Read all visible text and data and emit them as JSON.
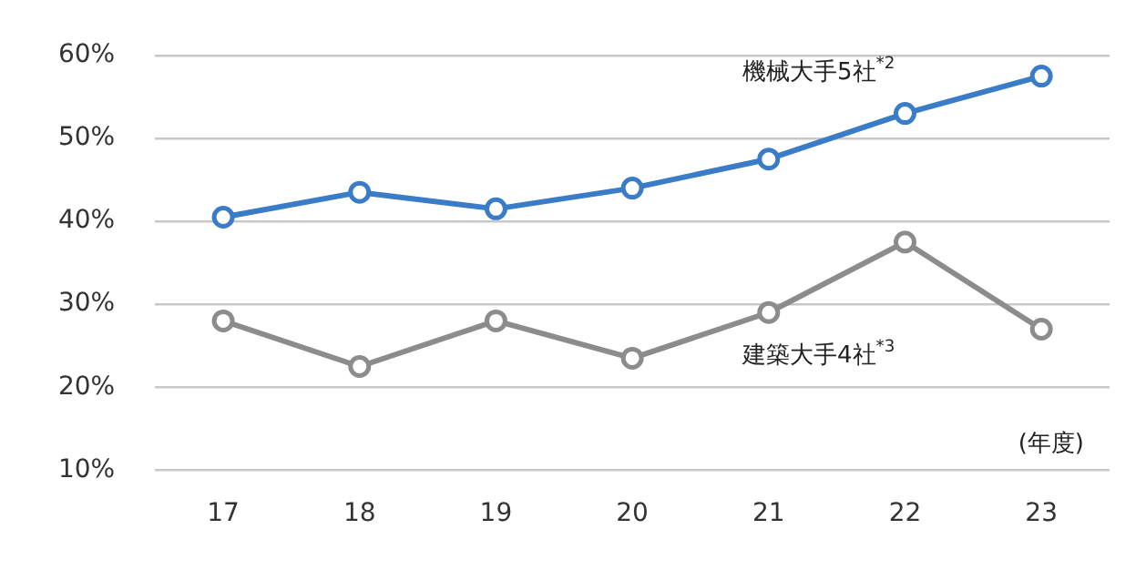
{
  "chart_data": {
    "type": "line",
    "categories": [
      "17",
      "18",
      "19",
      "20",
      "21",
      "22",
      "23"
    ],
    "series": [
      {
        "name": "機械大手5社$^{*2}$",
        "color": "#3a7cc8",
        "values": [
          40.5,
          43.5,
          41.5,
          44,
          47.5,
          53,
          57.5
        ]
      },
      {
        "name": "建築大手4社$^{*3}$",
        "color": "#8c8c8c",
        "values": [
          28,
          22.5,
          28,
          23.5,
          29,
          37.5,
          27
        ]
      }
    ],
    "ylim": [
      10,
      60
    ],
    "yticks": [
      {
        "value": 10,
        "label": "10%"
      },
      {
        "value": 20,
        "label": "20%"
      },
      {
        "value": 30,
        "label": "30%"
      },
      {
        "value": 40,
        "label": "40%"
      },
      {
        "value": 50,
        "label": "50%"
      },
      {
        "value": 60,
        "label": "60%"
      }
    ],
    "grid": "y",
    "legend": false,
    "marker": "circle",
    "line_style": "solid",
    "annotations": [
      "(年度)"
    ]
  }
}
